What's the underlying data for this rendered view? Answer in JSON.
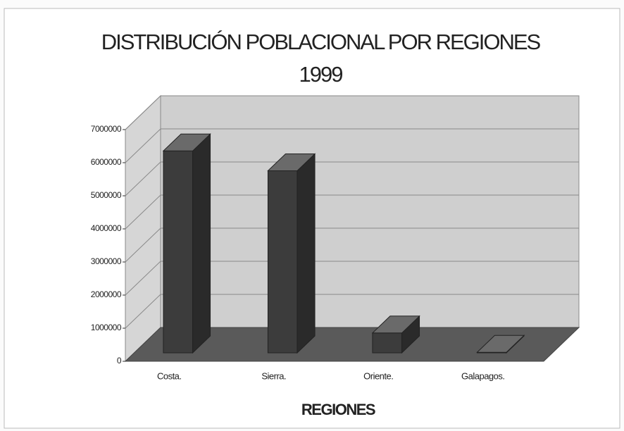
{
  "chart_data": {
    "type": "bar3d",
    "title": "DISTRIBUCIÓN POBLACIONAL POR REGIONES",
    "subtitle": "1999",
    "x_label": "REGIONES",
    "categories": [
      "Costa.",
      "Sierra.",
      "Oriente.",
      "Galapagos."
    ],
    "values": [
      6100000,
      5500000,
      600000,
      15000
    ],
    "color": "#3c3c3c",
    "ylim": [
      0,
      7000000
    ],
    "yticks": [
      0,
      1000000,
      2000000,
      3000000,
      4000000,
      5000000,
      6000000,
      7000000
    ],
    "grid": true
  }
}
